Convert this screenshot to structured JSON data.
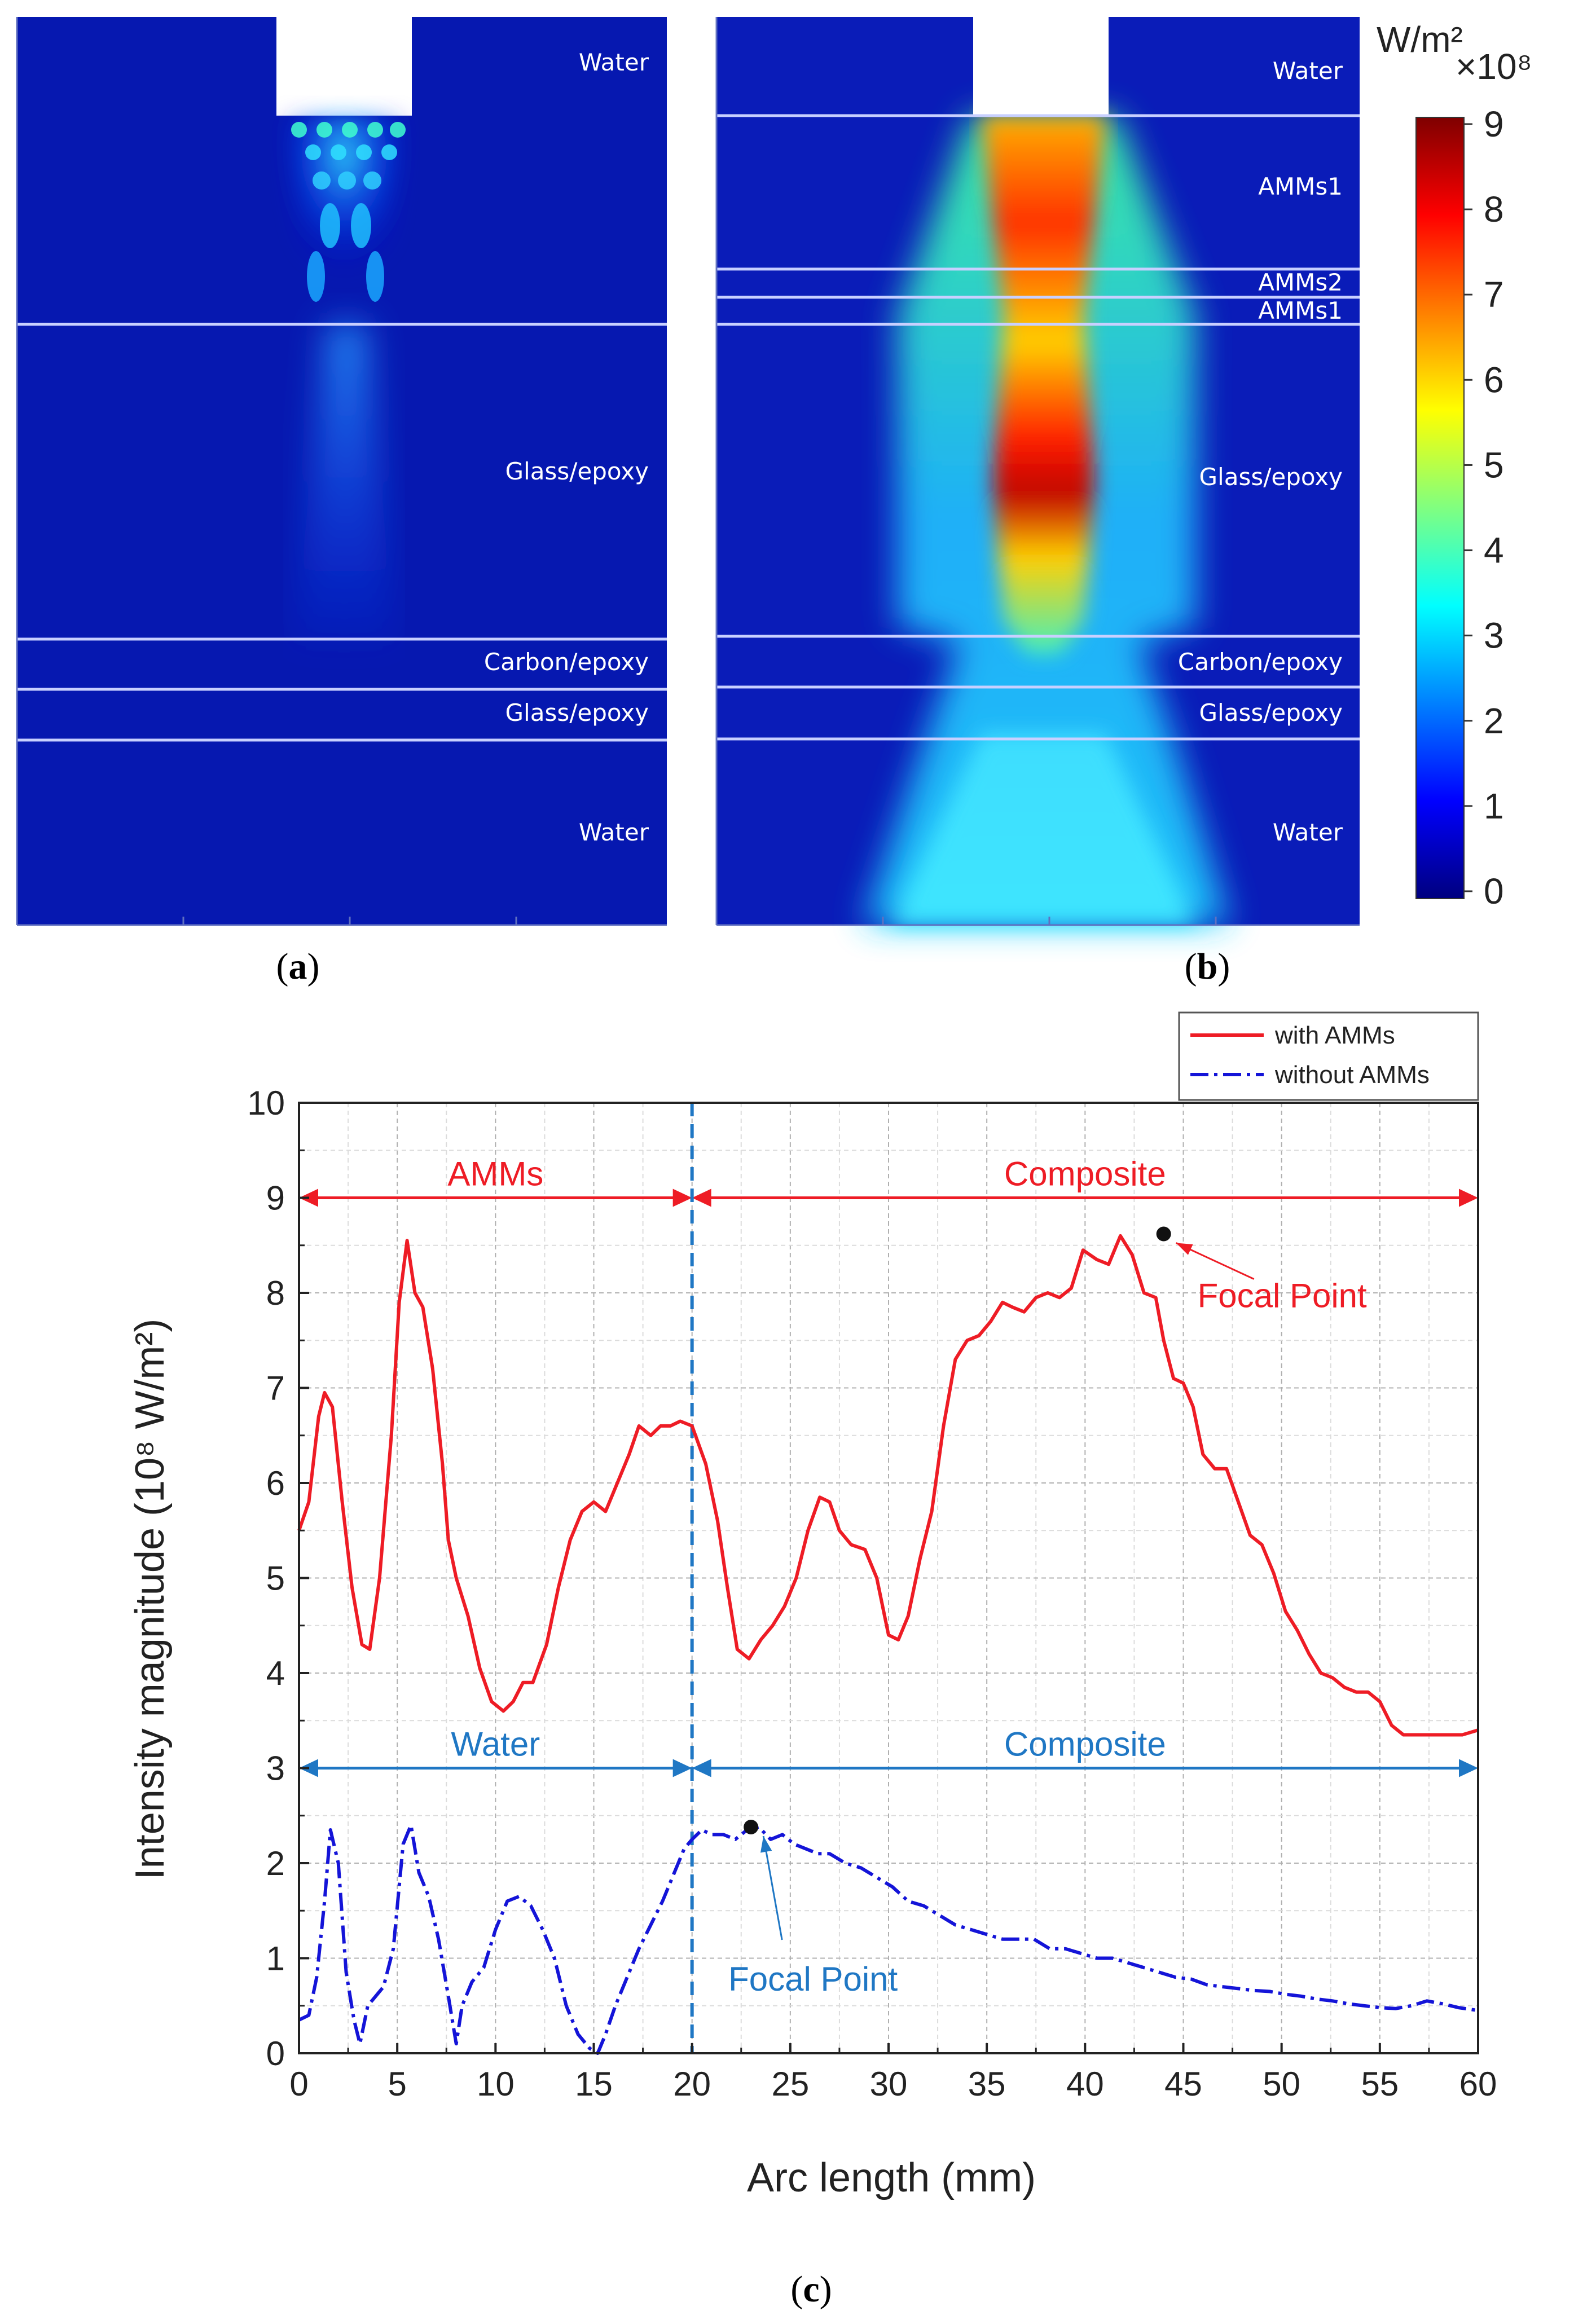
{
  "panels": {
    "a_label": "a",
    "b_label": "b",
    "c_label": "c"
  },
  "heatmap_a": {
    "layers": [
      "Water",
      "Glass/epoxy",
      "Carbon/epoxy",
      "Glass/epoxy",
      "Water"
    ]
  },
  "heatmap_b": {
    "layers": [
      "Water",
      "AMMs1",
      "AMMs2",
      "AMMs1",
      "Glass/epoxy",
      "Carbon/epoxy",
      "Glass/epoxy",
      "Water"
    ]
  },
  "colorbar": {
    "unit": "W/m²",
    "multiplier": "×10⁸",
    "ticks": [
      "9",
      "8",
      "7",
      "6",
      "5",
      "4",
      "3",
      "2",
      "1",
      "0"
    ],
    "colors": [
      "#00007f",
      "#0000ff",
      "#0080ff",
      "#00ffff",
      "#80ff80",
      "#ffff00",
      "#ff8000",
      "#ff0000",
      "#7f0000"
    ]
  },
  "chart_data": {
    "type": "line",
    "xlabel": "Arc length (mm)",
    "ylabel": "Intensity magnitude (10⁸ W/m²)",
    "xlim": [
      0,
      60
    ],
    "ylim": [
      0,
      10
    ],
    "xticks": [
      "0",
      "5",
      "10",
      "15",
      "20",
      "25",
      "30",
      "35",
      "40",
      "45",
      "50",
      "55",
      "60"
    ],
    "yticks": [
      "0",
      "1",
      "2",
      "3",
      "4",
      "5",
      "6",
      "7",
      "8",
      "9",
      "10"
    ],
    "grid": true,
    "legend_position": "top-right",
    "divider_x": 20,
    "regions": {
      "upper": {
        "left": "AMMs",
        "right": "Composite",
        "y": 9,
        "color": "#ee1c25"
      },
      "lower": {
        "left": "Water",
        "right": "Composite",
        "y": 3,
        "color": "#1f77c4"
      }
    },
    "series": [
      {
        "name": "with AMMs",
        "color": "#ee1c25",
        "style": "solid",
        "x": [
          0,
          0.5,
          1,
          1.3,
          1.7,
          2.2,
          2.7,
          3.2,
          3.6,
          4.1,
          4.7,
          5.1,
          5.5,
          5.9,
          6.3,
          6.8,
          7.3,
          7.6,
          8,
          8.6,
          9.2,
          9.8,
          10.4,
          10.9,
          11.4,
          11.9,
          12.6,
          13.2,
          13.8,
          14.4,
          15,
          15.6,
          16.2,
          16.8,
          17.3,
          17.9,
          18.4,
          18.9,
          19.4,
          20,
          20.7,
          21.3,
          21.8,
          22.3,
          22.9,
          23.5,
          24.1,
          24.7,
          25.3,
          25.9,
          26.5,
          27,
          27.5,
          28.1,
          28.8,
          29.4,
          30,
          30.5,
          31,
          31.6,
          32.2,
          32.8,
          33.4,
          34,
          34.6,
          35.2,
          35.8,
          36.3,
          36.9,
          37.5,
          38.1,
          38.7,
          39.3,
          39.9,
          40.6,
          41.2,
          41.8,
          42.4,
          43,
          43.6,
          44,
          44.5,
          45,
          45.5,
          46,
          46.6,
          47.2,
          47.8,
          48.4,
          49,
          49.6,
          50.2,
          50.8,
          51.4,
          52,
          52.6,
          53.2,
          53.8,
          54.4,
          55,
          55.6,
          56.2,
          56.8,
          57.4,
          58,
          58.6,
          59.2,
          60
        ],
        "y": [
          5.5,
          5.8,
          6.7,
          6.95,
          6.8,
          5.8,
          4.9,
          4.3,
          4.25,
          5.0,
          6.5,
          7.9,
          8.55,
          8.0,
          7.85,
          7.2,
          6.2,
          5.4,
          5.0,
          4.6,
          4.05,
          3.7,
          3.6,
          3.7,
          3.9,
          3.9,
          4.3,
          4.9,
          5.4,
          5.7,
          5.8,
          5.7,
          6.0,
          6.3,
          6.6,
          6.5,
          6.6,
          6.6,
          6.65,
          6.6,
          6.2,
          5.6,
          4.9,
          4.25,
          4.15,
          4.35,
          4.5,
          4.7,
          5.0,
          5.5,
          5.85,
          5.8,
          5.5,
          5.35,
          5.3,
          5.0,
          4.4,
          4.35,
          4.6,
          5.2,
          5.7,
          6.6,
          7.3,
          7.5,
          7.55,
          7.7,
          7.9,
          7.85,
          7.8,
          7.95,
          8.0,
          7.95,
          8.05,
          8.45,
          8.35,
          8.3,
          8.6,
          8.4,
          8.0,
          7.95,
          7.5,
          7.1,
          7.05,
          6.8,
          6.3,
          6.15,
          6.15,
          5.8,
          5.45,
          5.35,
          5.05,
          4.65,
          4.45,
          4.2,
          4.0,
          3.95,
          3.85,
          3.8,
          3.8,
          3.7,
          3.45,
          3.35,
          3.35,
          3.35,
          3.35,
          3.35,
          3.35,
          3.4
        ]
      },
      {
        "name": "without AMMs",
        "color": "#1414d8",
        "style": "dash-dot",
        "x": [
          0,
          0.5,
          0.9,
          1.3,
          1.6,
          2.0,
          2.4,
          2.8,
          3.1,
          3.5,
          3.9,
          4.3,
          4.8,
          5.3,
          5.7,
          6.1,
          6.6,
          7.1,
          7.6,
          8.0,
          8.3,
          8.8,
          9.4,
          10.0,
          10.6,
          11.2,
          11.8,
          12.4,
          13.0,
          13.6,
          14.2,
          14.8,
          15.2,
          15.6,
          16.1,
          16.7,
          17.3,
          17.9,
          18.5,
          19.1,
          19.6,
          20.0,
          20.5,
          21.0,
          21.6,
          22.2,
          22.8,
          23.4,
          24.0,
          24.6,
          25.2,
          25.8,
          26.4,
          27.0,
          27.8,
          28.6,
          29.4,
          30.2,
          31.0,
          31.8,
          32.6,
          33.4,
          34.2,
          35.0,
          35.8,
          36.6,
          37.4,
          38.2,
          39.0,
          39.8,
          40.6,
          41.4,
          42.2,
          43.0,
          43.8,
          44.6,
          45.4,
          46.2,
          47.0,
          47.8,
          48.6,
          49.4,
          50.2,
          51.0,
          51.8,
          52.6,
          53.4,
          54.2,
          55.0,
          55.8,
          56.6,
          57.4,
          58.2,
          59.0,
          60
        ],
        "y": [
          0.35,
          0.4,
          0.8,
          1.6,
          2.35,
          2.0,
          0.85,
          0.35,
          0.1,
          0.5,
          0.6,
          0.7,
          1.1,
          2.2,
          2.4,
          1.9,
          1.65,
          1.2,
          0.6,
          0.1,
          0.5,
          0.75,
          0.9,
          1.3,
          1.6,
          1.65,
          1.55,
          1.3,
          1.0,
          0.5,
          0.2,
          0.05,
          0.0,
          0.2,
          0.5,
          0.8,
          1.1,
          1.35,
          1.6,
          1.9,
          2.15,
          2.25,
          2.35,
          2.3,
          2.3,
          2.25,
          2.35,
          2.38,
          2.25,
          2.3,
          2.2,
          2.15,
          2.1,
          2.1,
          2.0,
          1.95,
          1.85,
          1.75,
          1.6,
          1.55,
          1.45,
          1.35,
          1.3,
          1.25,
          1.2,
          1.2,
          1.2,
          1.1,
          1.1,
          1.05,
          1.0,
          1.0,
          0.95,
          0.9,
          0.85,
          0.8,
          0.78,
          0.72,
          0.7,
          0.68,
          0.66,
          0.65,
          0.62,
          0.6,
          0.57,
          0.55,
          0.52,
          0.5,
          0.48,
          0.47,
          0.5,
          0.55,
          0.52,
          0.48,
          0.45
        ]
      }
    ],
    "annotations": [
      {
        "text": "Focal Point",
        "x": 44,
        "y": 8.62,
        "color": "#ee1c25"
      },
      {
        "text": "Focal Point",
        "x": 23,
        "y": 2.38,
        "color": "#1f77c4"
      }
    ]
  }
}
